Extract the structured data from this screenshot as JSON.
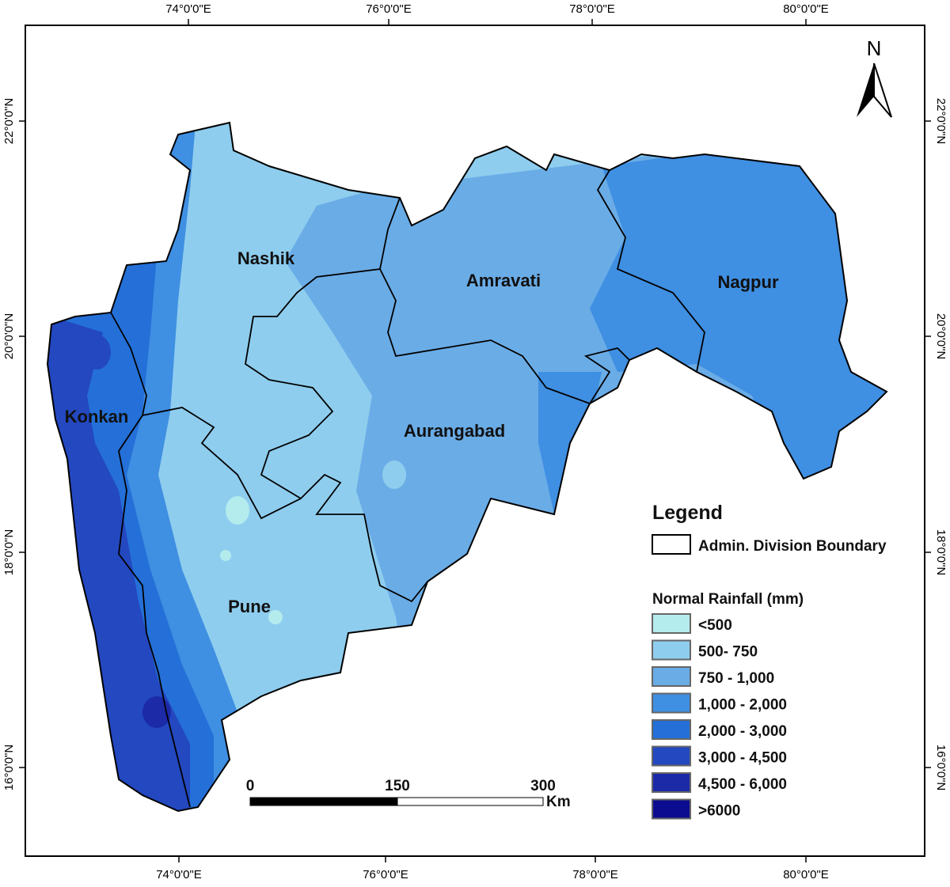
{
  "map": {
    "longitude_ticks_top": [
      "74°0'0\"E",
      "76°0'0\"E",
      "78°0'0\"E",
      "80°0'0\"E"
    ],
    "longitude_ticks_bottom": [
      "74°0'0\"E",
      "76°0'0\"E",
      "78°0'0\"E",
      "80°0'0\"E"
    ],
    "latitude_ticks": [
      "22°0'0\"N",
      "20°0'0\"N",
      "18°0'0\"N",
      "16°0'0\"N"
    ],
    "divisions": [
      "Nashik",
      "Amravati",
      "Nagpur",
      "Konkan",
      "Aurangabad",
      "Pune"
    ],
    "north_arrow": "N",
    "scale_bar": {
      "labels": [
        "0",
        "150",
        "300"
      ],
      "unit": "Km"
    }
  },
  "legend": {
    "title": "Legend",
    "boundary_label": "Admin. Division Boundary",
    "rainfall_title": "Normal Rainfall (mm)",
    "classes": [
      {
        "label": "<500",
        "color": "#b4ecee"
      },
      {
        "label": "500- 750",
        "color": "#8ecdee"
      },
      {
        "label": "750 - 1,000",
        "color": "#6aace6"
      },
      {
        "label": "1,000 - 2,000",
        "color": "#3f8fe2"
      },
      {
        "label": "2,000 - 3,000",
        "color": "#2470d8"
      },
      {
        "label": "3,000 - 4,500",
        "color": "#2348c0"
      },
      {
        "label": "4,500 - 6,000",
        "color": "#1c2aa8"
      },
      {
        "label": ">6000",
        "color": "#0c0c90"
      }
    ]
  }
}
